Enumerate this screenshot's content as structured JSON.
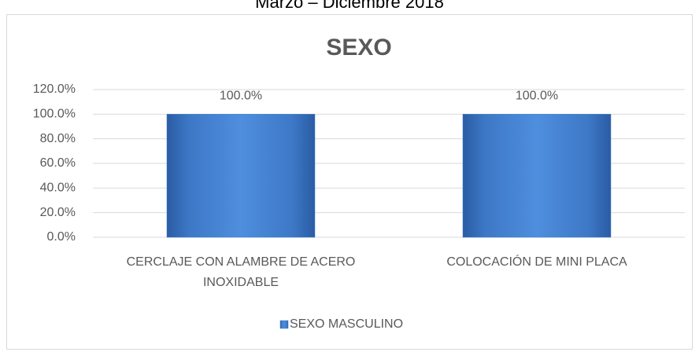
{
  "chart_data": {
    "type": "bar",
    "caption": "Marzo – Diciembre 2018",
    "title": "SEXO",
    "categories": [
      "CERCLAJE CON ALAMBRE DE ACERO INOXIDABLE",
      "COLOCACIÓN DE MINI PLACA"
    ],
    "series": [
      {
        "name": "SEXO MASCULINO",
        "color": "#3f7fd0",
        "values": [
          100,
          100
        ],
        "value_labels": [
          "100.0%",
          "100.0%"
        ]
      }
    ],
    "ylim": [
      0,
      120
    ],
    "yticks": [
      {
        "value": 0,
        "label": "0.0%"
      },
      {
        "value": 20,
        "label": "20.0%"
      },
      {
        "value": 40,
        "label": "40.0%"
      },
      {
        "value": 60,
        "label": "60.0%"
      },
      {
        "value": 80,
        "label": "80.0%"
      },
      {
        "value": 100,
        "label": "100.0%"
      },
      {
        "value": 120,
        "label": "120.0%"
      }
    ],
    "grid": true,
    "legend": "bottom"
  }
}
